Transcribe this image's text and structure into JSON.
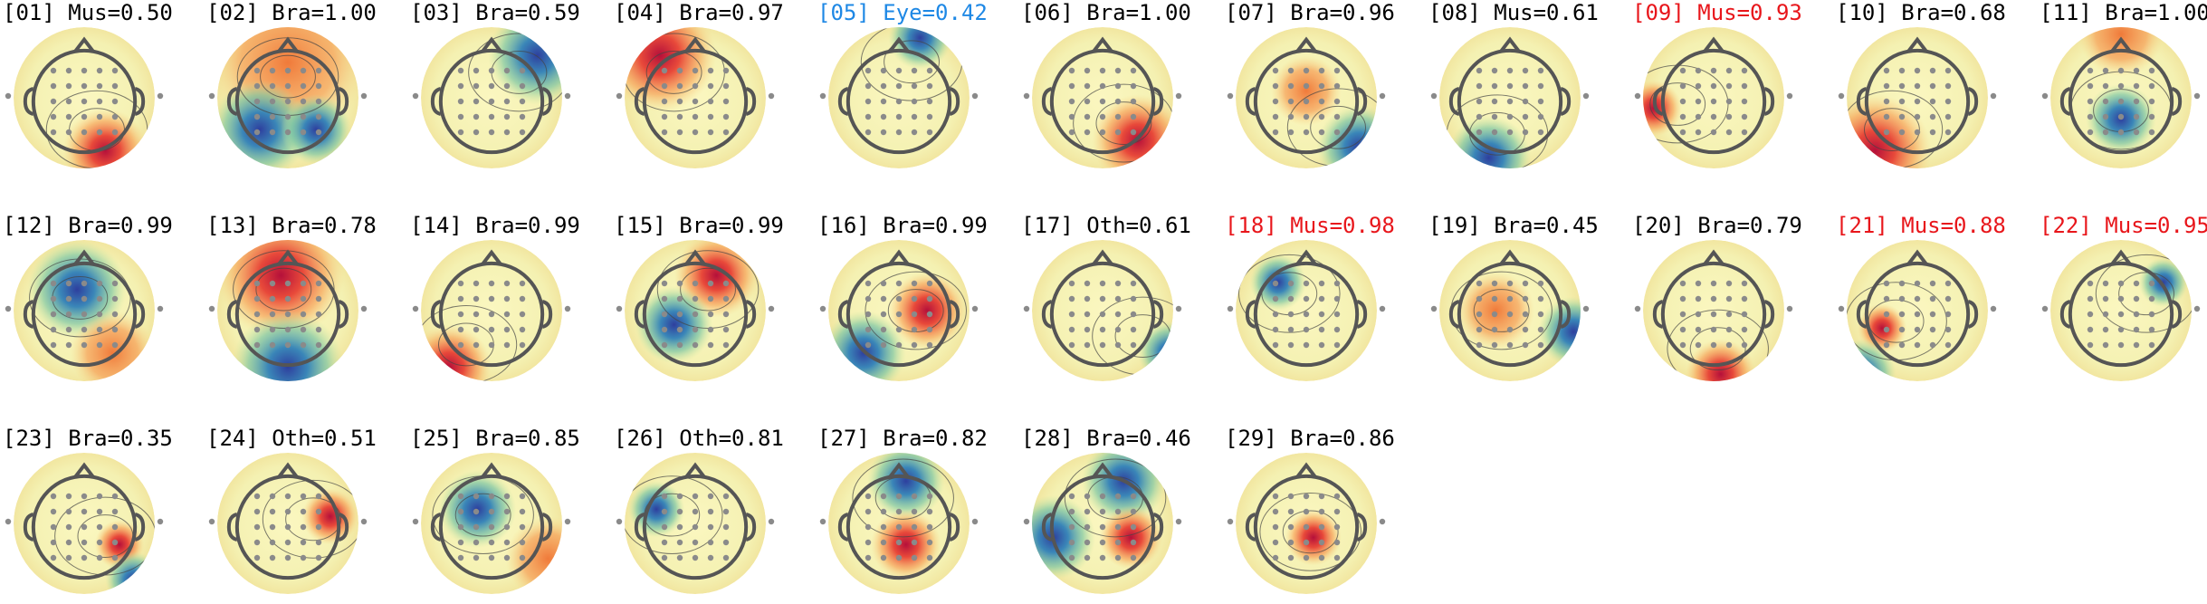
{
  "panels": [
    {
      "label": "[01] Mus=0.50",
      "color": "#000000"
    },
    {
      "label": "[02] Bra=1.00",
      "color": "#000000"
    },
    {
      "label": "[03] Bra=0.59",
      "color": "#000000"
    },
    {
      "label": "[04] Bra=0.97",
      "color": "#000000"
    },
    {
      "label": "[05] Eye=0.42",
      "color": "#1e88e5"
    },
    {
      "label": "[06] Bra=1.00",
      "color": "#000000"
    },
    {
      "label": "[07] Bra=0.96",
      "color": "#000000"
    },
    {
      "label": "[08] Mus=0.61",
      "color": "#000000"
    },
    {
      "label": "[09] Mus=0.93",
      "color": "#e8161b"
    },
    {
      "label": "[10] Bra=0.68",
      "color": "#000000"
    },
    {
      "label": "[11] Bra=1.00",
      "color": "#000000"
    },
    {
      "label": "[12] Bra=0.99",
      "color": "#000000"
    },
    {
      "label": "[13] Bra=0.78",
      "color": "#000000"
    },
    {
      "label": "[14] Bra=0.99",
      "color": "#000000"
    },
    {
      "label": "[15] Bra=0.99",
      "color": "#000000"
    },
    {
      "label": "[16] Bra=0.99",
      "color": "#000000"
    },
    {
      "label": "[17] Oth=0.61",
      "color": "#000000"
    },
    {
      "label": "[18] Mus=0.98",
      "color": "#e8161b"
    },
    {
      "label": "[19] Bra=0.45",
      "color": "#000000"
    },
    {
      "label": "[20] Bra=0.79",
      "color": "#000000"
    },
    {
      "label": "[21] Mus=0.88",
      "color": "#e8161b"
    },
    {
      "label": "[22] Mus=0.95",
      "color": "#e8161b"
    },
    {
      "label": "[23] Bra=0.35",
      "color": "#000000"
    },
    {
      "label": "[24] Oth=0.51",
      "color": "#000000"
    },
    {
      "label": "[25] Bra=0.85",
      "color": "#000000"
    },
    {
      "label": "[26] Oth=0.81",
      "color": "#000000"
    },
    {
      "label": "[27] Bra=0.82",
      "color": "#000000"
    },
    {
      "label": "[28] Bra=0.46",
      "color": "#000000"
    },
    {
      "label": "[29] Bra=0.86",
      "color": "#000000"
    }
  ]
}
